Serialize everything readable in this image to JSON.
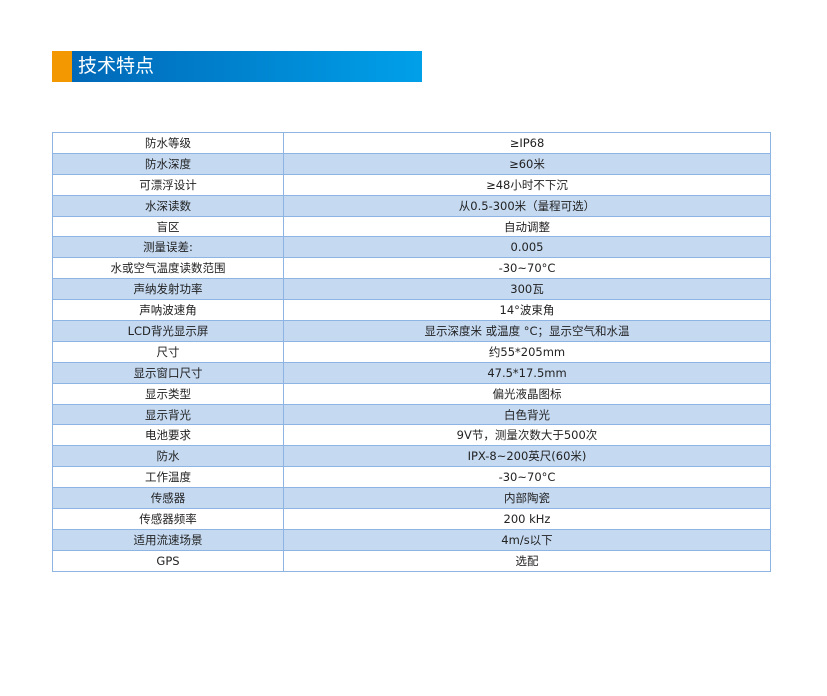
{
  "header": {
    "title": "技术特点",
    "colors": {
      "accent": "#f39800",
      "bar": "#0068b7"
    }
  },
  "table": {
    "rows": [
      [
        "防水等级",
        "≥IP68"
      ],
      [
        "防水深度",
        "≥60米"
      ],
      [
        "可漂浮设计",
        "≥48小时不下沉"
      ],
      [
        "水深读数",
        "从0.5-300米（量程可选）"
      ],
      [
        "盲区",
        "自动调整"
      ],
      [
        "测量误差:",
        "0.005"
      ],
      [
        "水或空气温度读数范围",
        "-30~70°C"
      ],
      [
        "声纳发射功率",
        "300瓦"
      ],
      [
        "声呐波速角",
        "14°波束角"
      ],
      [
        "LCD背光显示屏",
        "显示深度米 或温度 °C；显示空气和水温"
      ],
      [
        "尺寸",
        "约55*205mm"
      ],
      [
        "显示窗口尺寸",
        "47.5*17.5mm"
      ],
      [
        "显示类型",
        "偏光液晶图标"
      ],
      [
        "显示背光",
        "白色背光"
      ],
      [
        "电池要求",
        "9V节，测量次数大于500次"
      ],
      [
        "防水",
        "IPX-8~200英尺(60米)"
      ],
      [
        "工作温度",
        "-30~70°C"
      ],
      [
        "传感器",
        "内部陶瓷"
      ],
      [
        "传感器频率",
        "200 kHz"
      ],
      [
        "适用流速场景",
        "4m/s以下"
      ],
      [
        "GPS",
        "选配"
      ]
    ]
  }
}
